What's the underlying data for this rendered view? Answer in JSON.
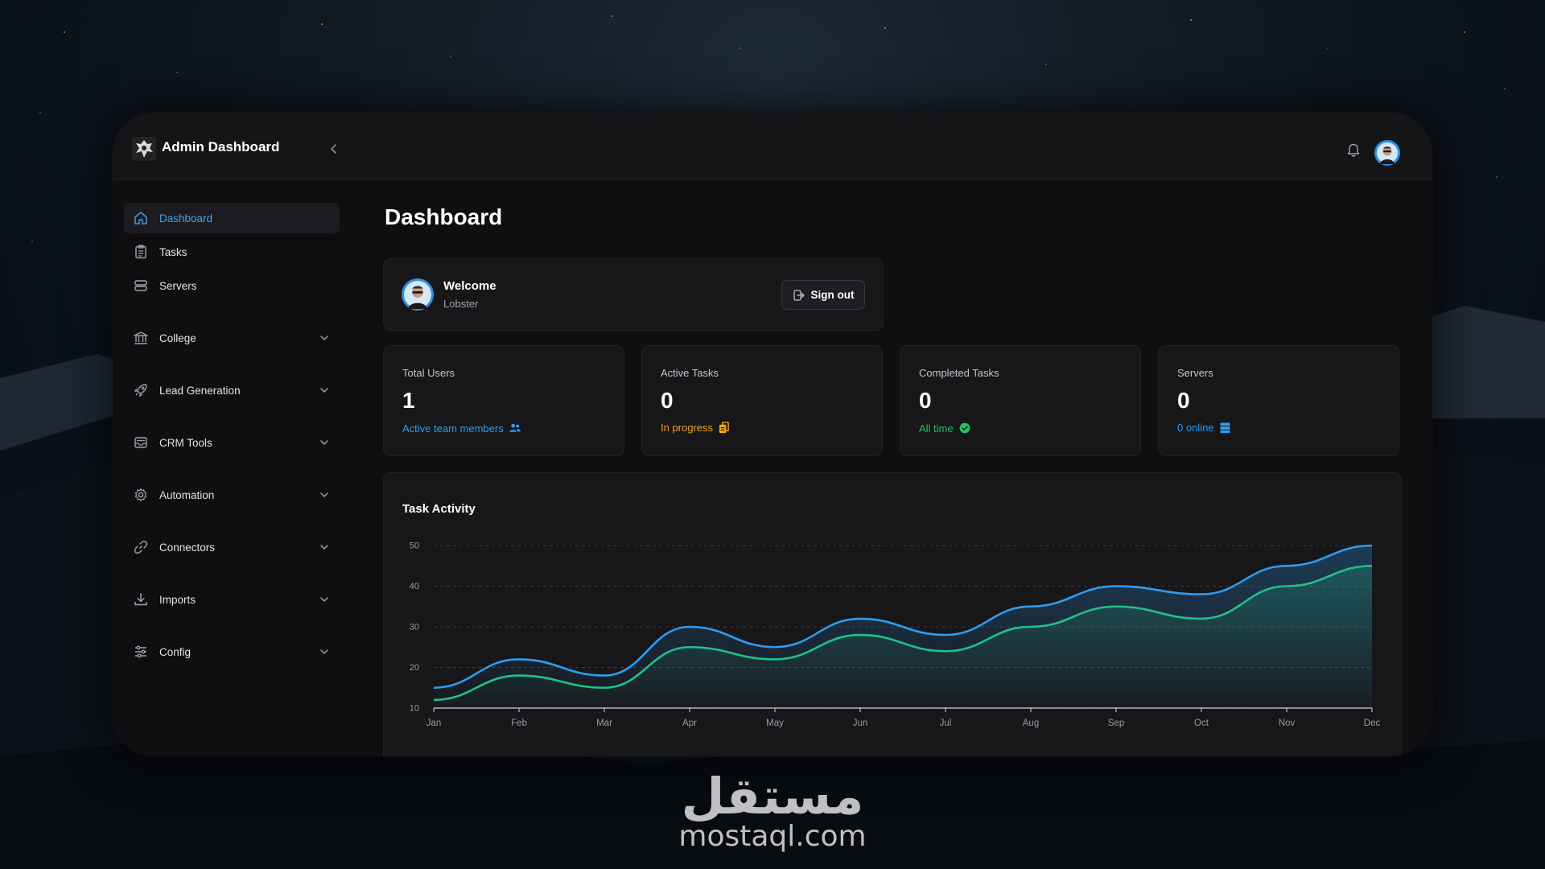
{
  "app": {
    "title": "Admin Dashboard"
  },
  "sidebar": {
    "items": [
      {
        "label": "Dashboard",
        "icon": "home-icon",
        "active": true
      },
      {
        "label": "Tasks",
        "icon": "clipboard-icon"
      },
      {
        "label": "Servers",
        "icon": "server-icon"
      },
      {
        "label": "College",
        "icon": "building-icon",
        "expandable": true
      },
      {
        "label": "Lead Generation",
        "icon": "rocket-icon",
        "expandable": true
      },
      {
        "label": "CRM Tools",
        "icon": "inbox-icon",
        "expandable": true
      },
      {
        "label": "Automation",
        "icon": "gear-icon",
        "expandable": true
      },
      {
        "label": "Connectors",
        "icon": "link-icon",
        "expandable": true
      },
      {
        "label": "Imports",
        "icon": "download-icon",
        "expandable": true
      },
      {
        "label": "Config",
        "icon": "sliders-icon",
        "expandable": true
      }
    ]
  },
  "page": {
    "title": "Dashboard"
  },
  "welcome": {
    "greeting": "Welcome",
    "username": "Lobster",
    "signout_label": "Sign out"
  },
  "stats": [
    {
      "label": "Total Users",
      "value": "1",
      "sub": "Active team members",
      "sub_color": "#2f9cf0",
      "icon": "users-icon"
    },
    {
      "label": "Active Tasks",
      "value": "0",
      "sub": "In progress",
      "sub_color": "#f2a516",
      "icon": "clipboard-icon"
    },
    {
      "label": "Completed Tasks",
      "value": "0",
      "sub": "All time",
      "sub_color": "#22c55e",
      "icon": "check-circle-icon"
    },
    {
      "label": "Servers",
      "value": "0",
      "sub": "0 online",
      "sub_color": "#2f9cf0",
      "icon": "server-icon"
    }
  ],
  "chart": {
    "title": "Task Activity"
  },
  "chart_data": {
    "type": "area",
    "title": "Task Activity",
    "categories": [
      "Jan",
      "Feb",
      "Mar",
      "Apr",
      "May",
      "Jun",
      "Jul",
      "Aug",
      "Sep",
      "Oct",
      "Nov",
      "Dec"
    ],
    "series": [
      {
        "values": [
          15,
          22,
          18,
          30,
          25,
          32,
          28,
          35,
          40,
          38,
          45,
          50
        ],
        "color": "#2f9cf0"
      },
      {
        "values": [
          12,
          18,
          15,
          25,
          22,
          28,
          24,
          30,
          35,
          32,
          40,
          45
        ],
        "color": "#22c08a"
      }
    ],
    "ylim": [
      10,
      50
    ],
    "yticks": [
      10,
      20,
      30,
      40,
      50
    ],
    "grid": true
  },
  "watermark": {
    "arabic": "مستقل",
    "latin": "mostaql.com"
  }
}
